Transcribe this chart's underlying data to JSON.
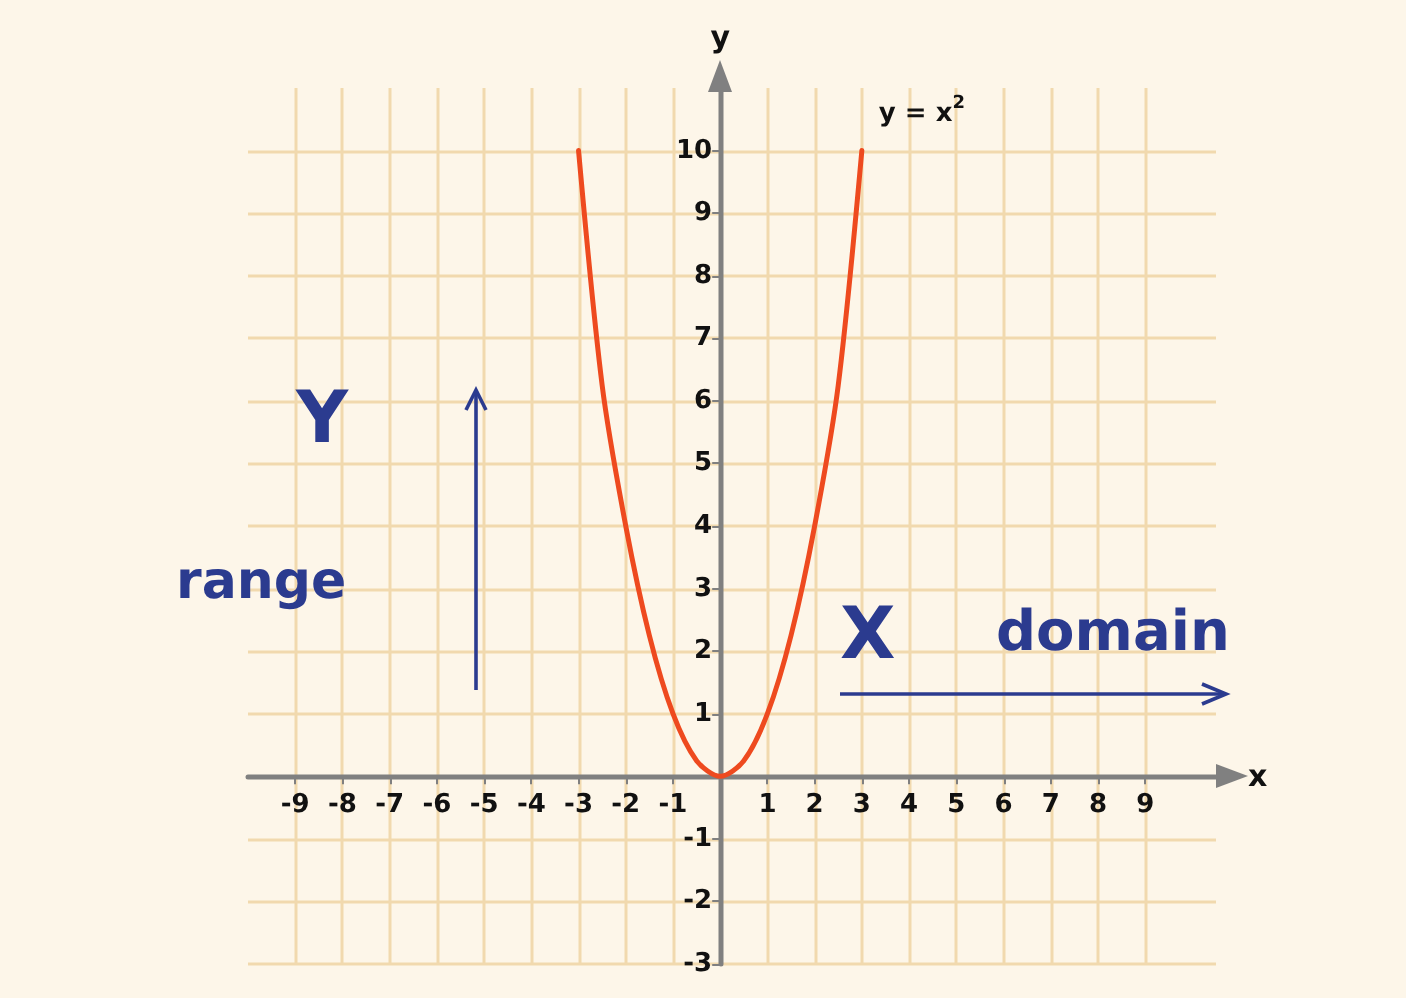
{
  "chart_data": {
    "type": "line",
    "xlabel": "x",
    "ylabel": "y",
    "x": [
      -3,
      -2.5,
      -2,
      -1.5,
      -1,
      -0.5,
      0,
      0.5,
      1,
      1.5,
      2,
      2.5,
      3
    ],
    "series": [
      {
        "name": "y = x$^{2}$",
        "color": "#ee4a1f",
        "values": [
          10,
          6.25,
          4,
          2.25,
          1,
          0.25,
          0,
          0.25,
          1,
          2.25,
          4,
          6.25,
          10
        ]
      }
    ],
    "xlim": [
      -10,
      10.5
    ],
    "ylim": [
      -3,
      11
    ],
    "xticks": [
      -9,
      -8,
      -7,
      -6,
      -5,
      -4,
      -3,
      -2,
      -1,
      1,
      2,
      3,
      4,
      5,
      6,
      7,
      8,
      9
    ],
    "yticks": [
      -3,
      -2,
      -1,
      1,
      2,
      3,
      4,
      5,
      6,
      7,
      8,
      9,
      10
    ],
    "grid": true,
    "marker": "none",
    "line_style": "solid",
    "annotations": [
      "Y",
      "range",
      "X",
      "domain"
    ]
  }
}
